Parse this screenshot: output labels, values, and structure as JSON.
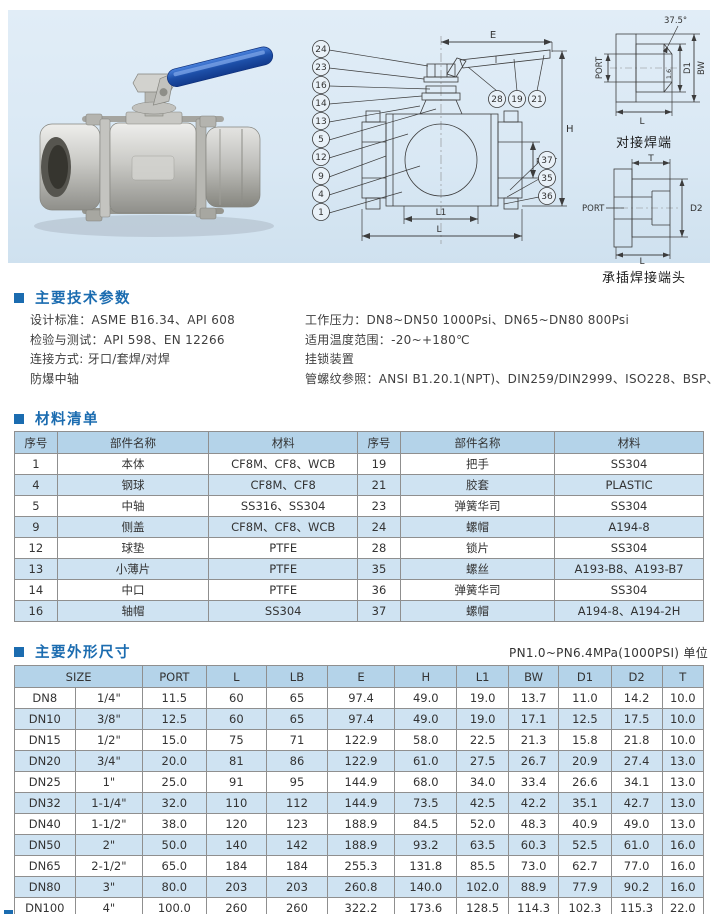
{
  "colors": {
    "accent": "#1b6cb0",
    "table_header_bg": "#b4d3e9",
    "alt_row_bg": "#cfe3f2",
    "banner_bg": "#d9e8f4",
    "handle_blue": "#1d4fa8"
  },
  "diagram": {
    "callouts_left": [
      "24",
      "23",
      "16",
      "14",
      "13",
      "5",
      "12",
      "9",
      "4",
      "1"
    ],
    "callouts_handle": [
      "28",
      "19",
      "21"
    ],
    "callouts_right": [
      "37",
      "35",
      "36"
    ],
    "labels": {
      "e": "E",
      "h": "H",
      "port": "PORT",
      "l1": "L1",
      "l": "L"
    }
  },
  "butt_weld": {
    "angle": "37.5°",
    "gap": "1.6",
    "labels": {
      "port": "PORT",
      "d1": "D1",
      "bw": "BW",
      "l": "L"
    },
    "caption": "对接焊端"
  },
  "socket_weld": {
    "labels": {
      "t": "T",
      "port": "PORT",
      "d2": "D2",
      "l": "L"
    },
    "caption": "承插焊接端头"
  },
  "tech": {
    "title": "主要技术参数",
    "left_lines": [
      "设计标准：ASME B16.34、API 608",
      "检验与测试：API 598、EN 12266",
      "连接方式: 牙口/套焊/对焊",
      "防爆中轴"
    ],
    "right_lines": [
      "工作压力：DN8~DN50 1000Psi、DN65~DN80 800Psi",
      "适用温度范围：-20~+180℃",
      "挂锁装置",
      "管螺纹参照：ANSI B1.20.1(NPT)、DIN259/DIN2999、ISO228、BSP、PT"
    ]
  },
  "materials": {
    "title": "材料清单",
    "headers": [
      "序号",
      "部件名称",
      "材料"
    ],
    "rows": [
      [
        "1",
        "本体",
        "CF8M、CF8、WCB",
        "19",
        "把手",
        "SS304"
      ],
      [
        "4",
        "钢球",
        "CF8M、CF8",
        "21",
        "胶套",
        "PLASTIC"
      ],
      [
        "5",
        "中轴",
        "SS316、SS304",
        "23",
        "弹簧华司",
        "SS304"
      ],
      [
        "9",
        "侧盖",
        "CF8M、CF8、WCB",
        "24",
        "螺帽",
        "A194-8"
      ],
      [
        "12",
        "球垫",
        "PTFE",
        "28",
        "锁片",
        "SS304"
      ],
      [
        "13",
        "小薄片",
        "PTFE",
        "35",
        "螺丝",
        "A193-B8、A193-B7"
      ],
      [
        "14",
        "中口",
        "PTFE",
        "36",
        "弹簧华司",
        "SS304"
      ],
      [
        "16",
        "轴帽",
        "SS304",
        "37",
        "螺帽",
        "A194-8、A194-2H"
      ]
    ]
  },
  "dims": {
    "title": "主要外形尺寸",
    "note": "PN1.0~PN6.4MPa(1000PSI)  单位",
    "headers": [
      "SIZE",
      "PORT",
      "L",
      "LB",
      "E",
      "H",
      "L1",
      "BW",
      "D1",
      "D2",
      "T"
    ],
    "rows": [
      [
        "DN8",
        "1/4\"",
        "11.5",
        "60",
        "65",
        "97.4",
        "49.0",
        "19.0",
        "13.7",
        "11.0",
        "14.2",
        "10.0"
      ],
      [
        "DN10",
        "3/8\"",
        "12.5",
        "60",
        "65",
        "97.4",
        "49.0",
        "19.0",
        "17.1",
        "12.5",
        "17.5",
        "10.0"
      ],
      [
        "DN15",
        "1/2\"",
        "15.0",
        "75",
        "71",
        "122.9",
        "58.0",
        "22.5",
        "21.3",
        "15.8",
        "21.8",
        "10.0"
      ],
      [
        "DN20",
        "3/4\"",
        "20.0",
        "81",
        "86",
        "122.9",
        "61.0",
        "27.5",
        "26.7",
        "20.9",
        "27.4",
        "13.0"
      ],
      [
        "DN25",
        "1\"",
        "25.0",
        "91",
        "95",
        "144.9",
        "68.0",
        "34.0",
        "33.4",
        "26.6",
        "34.1",
        "13.0"
      ],
      [
        "DN32",
        "1-1/4\"",
        "32.0",
        "110",
        "112",
        "144.9",
        "73.5",
        "42.5",
        "42.2",
        "35.1",
        "42.7",
        "13.0"
      ],
      [
        "DN40",
        "1-1/2\"",
        "38.0",
        "120",
        "123",
        "188.9",
        "84.5",
        "52.0",
        "48.3",
        "40.9",
        "49.0",
        "13.0"
      ],
      [
        "DN50",
        "2\"",
        "50.0",
        "140",
        "142",
        "188.9",
        "93.2",
        "63.5",
        "60.3",
        "52.5",
        "61.0",
        "16.0"
      ],
      [
        "DN65",
        "2-1/2\"",
        "65.0",
        "184",
        "184",
        "255.3",
        "131.8",
        "85.5",
        "73.0",
        "62.7",
        "77.0",
        "16.0"
      ],
      [
        "DN80",
        "3\"",
        "80.0",
        "203",
        "203",
        "260.8",
        "140.0",
        "102.0",
        "88.9",
        "77.9",
        "90.2",
        "16.0"
      ],
      [
        "DN100",
        "4\"",
        "100.0",
        "260",
        "260",
        "322.2",
        "173.6",
        "128.5",
        "114.3",
        "102.3",
        "115.3",
        "22.0"
      ]
    ]
  }
}
